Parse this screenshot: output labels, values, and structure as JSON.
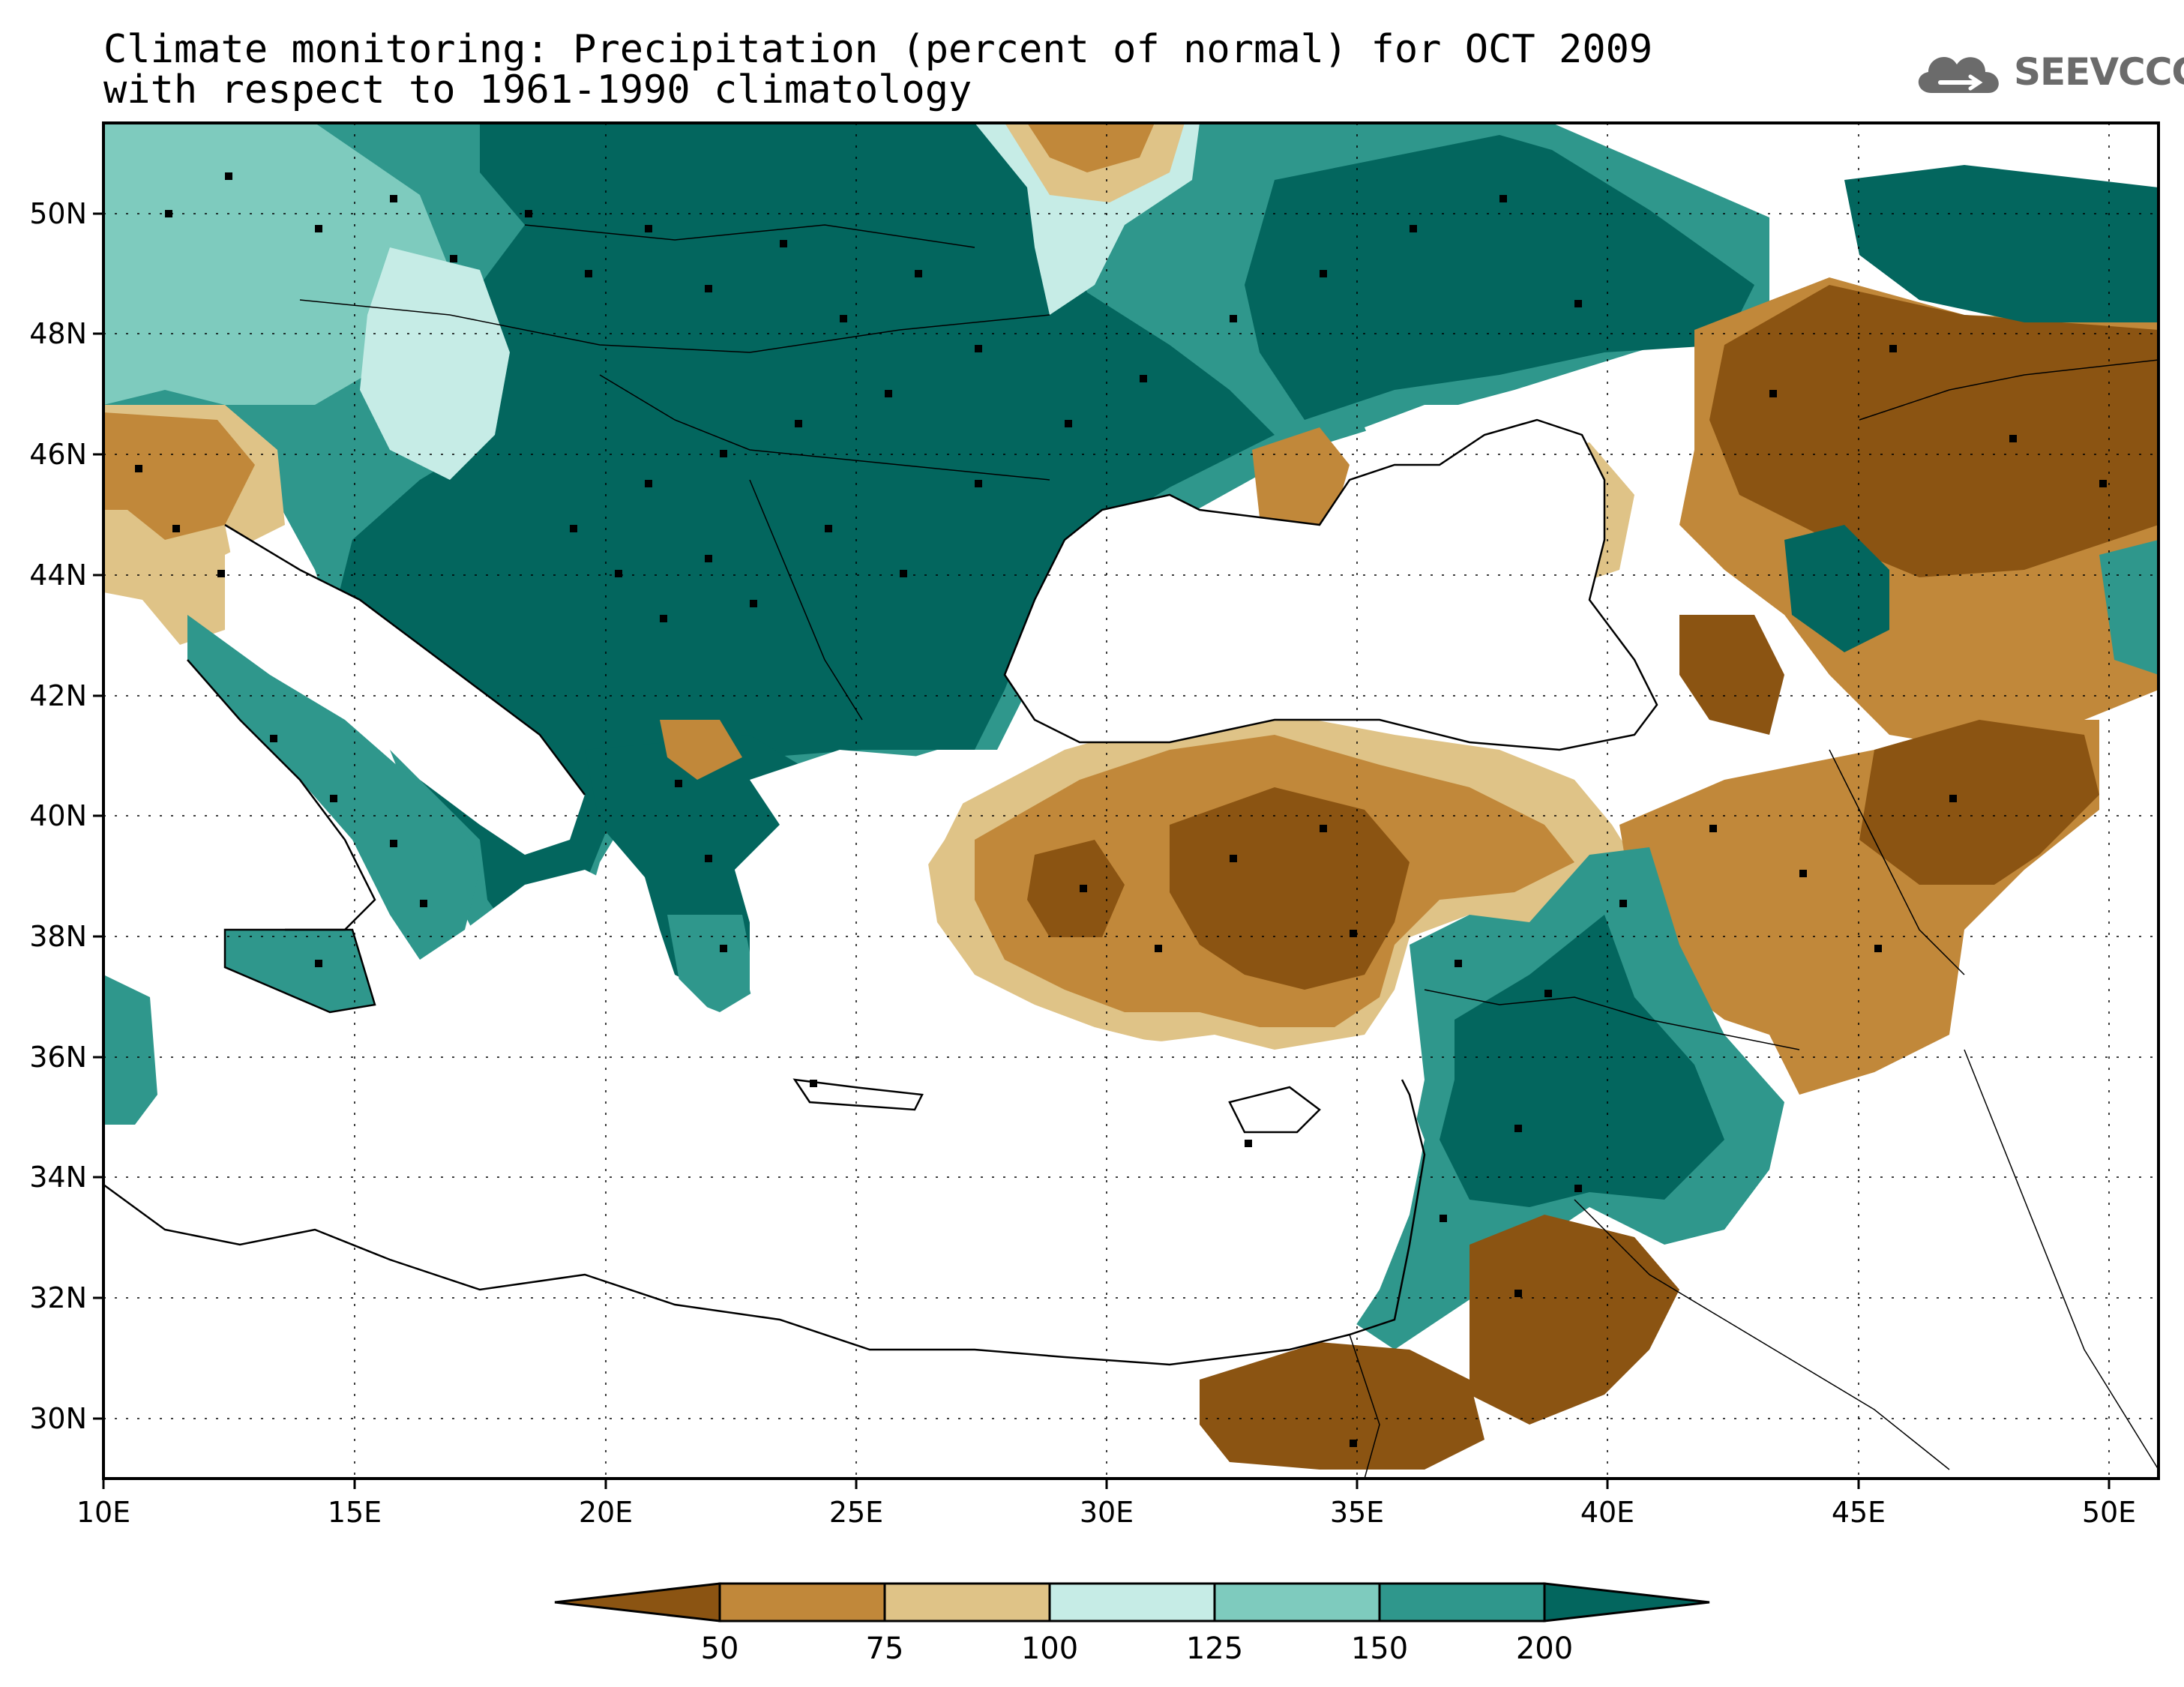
{
  "title": {
    "line1": "Climate monitoring: Precipitation (percent of normal) for OCT 2009",
    "line2": "with respect to 1961-1990 climatology"
  },
  "logo": {
    "text": "SEEVCCC",
    "icon": "cloud-icon"
  },
  "map": {
    "lon_range": [
      10,
      51
    ],
    "lat_range": [
      29,
      51.5
    ],
    "x_ticks": [
      "10E",
      "15E",
      "20E",
      "25E",
      "30E",
      "35E",
      "40E",
      "45E",
      "50E"
    ],
    "y_ticks": [
      "30N",
      "32N",
      "34N",
      "36N",
      "38N",
      "40N",
      "42N",
      "44N",
      "46N",
      "48N",
      "50N"
    ],
    "gridlines": "dotted"
  },
  "legend": {
    "boundaries": [
      "50",
      "75",
      "100",
      "125",
      "150",
      "200"
    ],
    "colors": [
      "#8b5412",
      "#c1883a",
      "#dfc387",
      "#c6ece6",
      "#7ecbbe",
      "#2f978c",
      "#03665e"
    ],
    "extend": "both"
  }
}
